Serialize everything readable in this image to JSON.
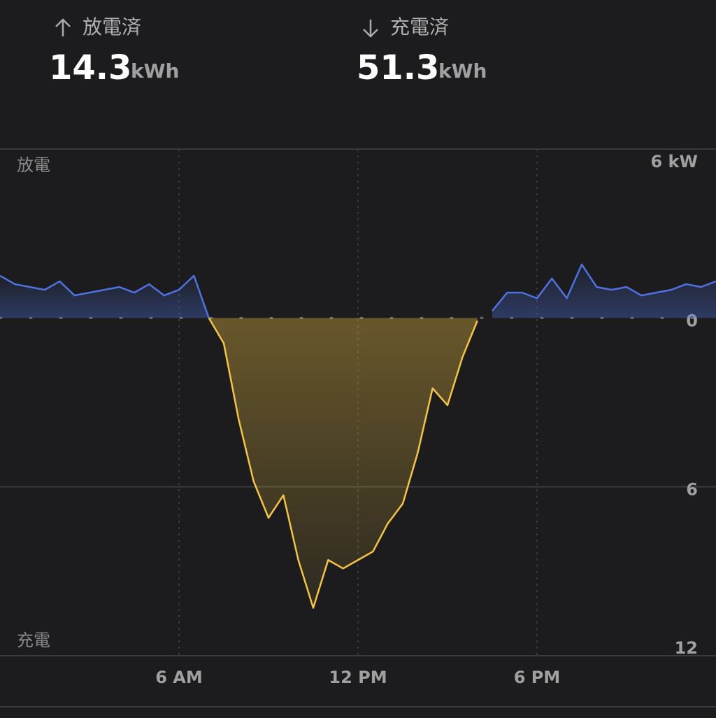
{
  "summary": {
    "discharged": {
      "label": "放電済",
      "value": "14.3",
      "unit": "kWh"
    },
    "charged": {
      "label": "充電済",
      "value": "51.3",
      "unit": "kWh"
    }
  },
  "chart_data": {
    "type": "area",
    "top_label": "放電",
    "bottom_label": "充電",
    "x": [
      0,
      0.5,
      1,
      1.5,
      2,
      2.5,
      3,
      3.5,
      4,
      4.5,
      5,
      5.5,
      6,
      6.5,
      7,
      7.5,
      8,
      8.5,
      9,
      9.5,
      10,
      10.5,
      11,
      11.5,
      12,
      12.5,
      13,
      13.5,
      14,
      14.5,
      15,
      15.5,
      16,
      16.5,
      17,
      17.5,
      18,
      18.5,
      19,
      19.5,
      20,
      20.5,
      21,
      21.5,
      22,
      22.5,
      23,
      23.5,
      24
    ],
    "xlim": [
      0,
      24
    ],
    "xticks": [
      {
        "value": 6,
        "label": "6 AM"
      },
      {
        "value": 12,
        "label": "12 PM"
      },
      {
        "value": 18,
        "label": "6 PM"
      }
    ],
    "ylim": [
      -12,
      6
    ],
    "yticks": [
      {
        "value": 6,
        "label": "6 kW"
      },
      0,
      {
        "value": -6,
        "label": "6"
      },
      {
        "value": -12,
        "label": "12"
      }
    ],
    "series": [
      {
        "name": "放電",
        "color": "#4f72e3",
        "values": [
          1.5,
          1.2,
          1.1,
          1.0,
          1.3,
          0.8,
          0.9,
          1.0,
          1.1,
          0.9,
          1.2,
          0.8,
          1.0,
          1.5,
          0,
          null,
          null,
          null,
          null,
          null,
          null,
          null,
          null,
          null,
          null,
          null,
          null,
          null,
          null,
          null,
          null,
          null,
          null,
          0.25,
          0.9,
          0.9,
          0.7,
          1.4,
          0.7,
          1.9,
          1.1,
          1.0,
          1.1,
          0.8,
          0.9,
          1.0,
          1.2,
          1.1,
          1.3
        ]
      },
      {
        "name": "充電",
        "color": "#f5c542",
        "values": [
          null,
          null,
          null,
          null,
          null,
          null,
          null,
          null,
          null,
          null,
          null,
          null,
          null,
          null,
          0,
          -0.9,
          -3.6,
          -5.8,
          -7.1,
          -6.3,
          -8.6,
          -10.3,
          -8.6,
          -8.9,
          -8.6,
          -8.3,
          -7.3,
          -6.6,
          -4.8,
          -2.5,
          -3.1,
          -1.4,
          -0.1,
          null,
          null,
          null,
          null,
          null,
          null,
          null,
          null,
          null,
          null,
          null,
          null,
          null,
          null,
          null,
          null
        ]
      }
    ]
  }
}
